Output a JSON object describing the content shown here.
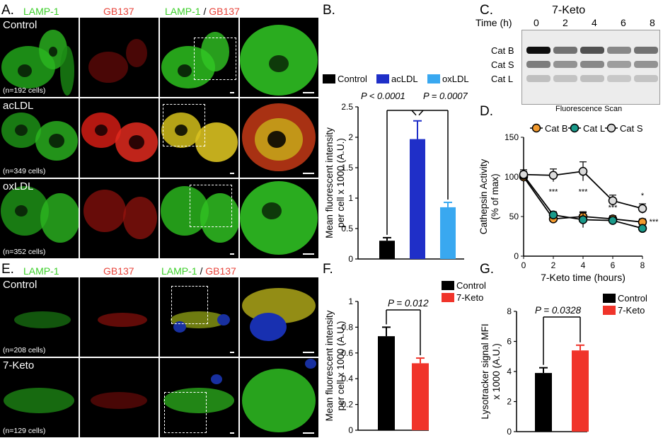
{
  "panelA": {
    "letter": "A.",
    "headers": {
      "lamp1": "LAMP-1",
      "gb137": "GB137",
      "merge_lamp": "LAMP-1",
      "merge_sep": " / ",
      "merge_gb": "GB137"
    },
    "rows": [
      {
        "condition": "Control",
        "count": "(n=192 cells)"
      },
      {
        "condition": "acLDL",
        "count": "(n=349 cells)"
      },
      {
        "condition": "oxLDL",
        "count": "(n=352 cells)"
      }
    ]
  },
  "panelB": {
    "letter": "B.",
    "legend": [
      "Control",
      "acLDL",
      "oxLDL"
    ],
    "colors": [
      "#000000",
      "#1f2fc8",
      "#39a8f0"
    ],
    "stats": {
      "p1": "P < 0.0001",
      "p2": "P = 0.0007"
    },
    "chart_data": {
      "type": "bar",
      "categories": [
        "Control",
        "acLDL",
        "oxLDL"
      ],
      "values": [
        0.3,
        1.97,
        0.85
      ],
      "errors": [
        0.05,
        0.3,
        0.08
      ],
      "ylabel_line1": "Mean fluorescent intensity",
      "ylabel_line2": "per cell x 1000 (A.U.)",
      "ylim": [
        0,
        2.5
      ],
      "yticks": [
        "0",
        "0.5",
        "1",
        "1.5",
        "2",
        "2.5"
      ],
      "ytick_values": [
        0,
        0.5,
        1,
        1.5,
        2,
        2.5
      ]
    }
  },
  "panelC": {
    "letter": "C.",
    "title": "7-Keto",
    "time_label": "Time (h)",
    "times": [
      "0",
      "2",
      "4",
      "6",
      "8"
    ],
    "bands": [
      "Cat B",
      "Cat S",
      "Cat L"
    ],
    "caption": "Fluorescence Scan"
  },
  "panelD": {
    "letter": "D.",
    "legend": [
      "Cat B",
      "Cat L",
      "Cat S"
    ],
    "colors": [
      "#f29a2e",
      "#1a9a8a",
      "#dcdcdc"
    ],
    "stars": [
      "***",
      "***",
      "***",
      "*",
      "***"
    ],
    "chart_data": {
      "type": "line",
      "x": [
        0,
        2,
        4,
        6,
        8
      ],
      "series": [
        {
          "name": "Cat B",
          "values": [
            100,
            47,
            50,
            47,
            43
          ],
          "errors": [
            6,
            5,
            5,
            4,
            4
          ]
        },
        {
          "name": "Cat L",
          "values": [
            102,
            52,
            46,
            45,
            35
          ],
          "errors": [
            5,
            4,
            10,
            4,
            3
          ]
        },
        {
          "name": "Cat S",
          "values": [
            103,
            102,
            107,
            70,
            60
          ],
          "errors": [
            6,
            8,
            12,
            7,
            6
          ]
        }
      ],
      "xlabel": "7-Keto time (hours)",
      "ylabel_line1": "Cathepsin Activity",
      "ylabel_line2": "(% of max)",
      "xlim": [
        0,
        8
      ],
      "ylim": [
        0,
        150
      ],
      "xticks": [
        "0",
        "2",
        "4",
        "6",
        "8"
      ],
      "yticks": [
        "0",
        "50",
        "100",
        "150"
      ],
      "ytick_values": [
        0,
        50,
        100,
        150
      ]
    }
  },
  "panelE": {
    "letter": "E.",
    "headers": {
      "lamp1": "LAMP-1",
      "gb137": "GB137",
      "merge_lamp": "LAMP-1",
      "merge_sep": " / ",
      "merge_gb": "GB137"
    },
    "rows": [
      {
        "condition": "Control",
        "count": "(n=208 cells)"
      },
      {
        "condition": "7-Keto",
        "count": "(n=129 cells)"
      }
    ]
  },
  "panelF": {
    "letter": "F.",
    "legend": [
      "Control",
      "7-Keto"
    ],
    "colors": [
      "#000000",
      "#f0342a"
    ],
    "stat": "P = 0.012",
    "chart_data": {
      "type": "bar",
      "categories": [
        "Control",
        "7-Keto"
      ],
      "values": [
        0.73,
        0.52
      ],
      "errors": [
        0.07,
        0.04
      ],
      "ylabel_line1": "Mean fluorescent intensity",
      "ylabel_line2": "per cell x 1000 (A.U.)",
      "ylim": [
        0,
        1
      ],
      "yticks": [
        "0",
        "0.2",
        "0.4",
        "0.6",
        "0.8",
        "1"
      ],
      "ytick_values": [
        0,
        0.2,
        0.4,
        0.6,
        0.8,
        1
      ]
    }
  },
  "panelG": {
    "letter": "G.",
    "legend": [
      "Control",
      "7-Keto"
    ],
    "colors": [
      "#000000",
      "#f0342a"
    ],
    "stat": "P = 0.0328",
    "chart_data": {
      "type": "bar",
      "categories": [
        "Control",
        "7-Keto"
      ],
      "values": [
        3.9,
        5.4
      ],
      "errors": [
        0.35,
        0.35
      ],
      "ylabel_line1": "Lysotracker signal MFI",
      "ylabel_line2": "x 1000 (A.U.)",
      "ylim": [
        0,
        8
      ],
      "yticks": [
        "0",
        "2",
        "4",
        "6",
        "8"
      ],
      "ytick_values": [
        0,
        2,
        4,
        6,
        8
      ]
    }
  }
}
